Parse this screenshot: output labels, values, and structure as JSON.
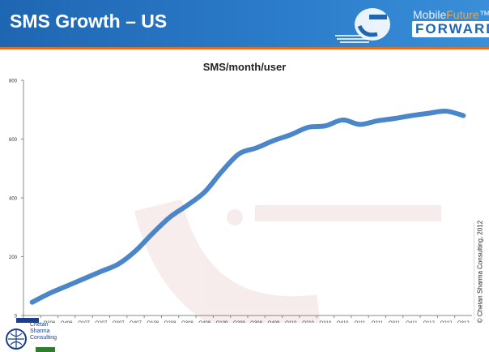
{
  "header": {
    "title": "SMS Growth – US",
    "logo_mobile": "Mobile",
    "logo_future": "Future",
    "logo_tm": "™",
    "logo_forward": "FORWARD"
  },
  "badge": {
    "line1": "Chetan",
    "line2": "Sharma",
    "line3": "Consulting"
  },
  "copyright": "© Chetan Sharma Consulting, 2012",
  "colors": {
    "header": "#1f66b2",
    "accent": "#e0701e",
    "series": "#4a86c8"
  },
  "chart_data": {
    "type": "line",
    "title": "SMS/month/user",
    "xlabel": "",
    "ylabel": "",
    "ylim": [
      0,
      800
    ],
    "yticks": [
      0,
      200,
      400,
      600,
      800
    ],
    "grid": false,
    "legend": "none",
    "categories": [
      "Q206",
      "Q306",
      "Q406",
      "Q107",
      "Q207",
      "Q307",
      "Q407",
      "Q108",
      "Q208",
      "Q308",
      "Q408",
      "Q109",
      "Q209",
      "Q309",
      "Q409",
      "Q110",
      "Q210",
      "Q310",
      "Q410",
      "Q111",
      "Q211",
      "Q311",
      "Q411",
      "Q112",
      "Q212",
      "Q312"
    ],
    "values": [
      45,
      75,
      100,
      125,
      150,
      175,
      220,
      280,
      335,
      375,
      420,
      490,
      550,
      570,
      595,
      615,
      640,
      645,
      665,
      650,
      662,
      670,
      680,
      688,
      695,
      680
    ]
  }
}
